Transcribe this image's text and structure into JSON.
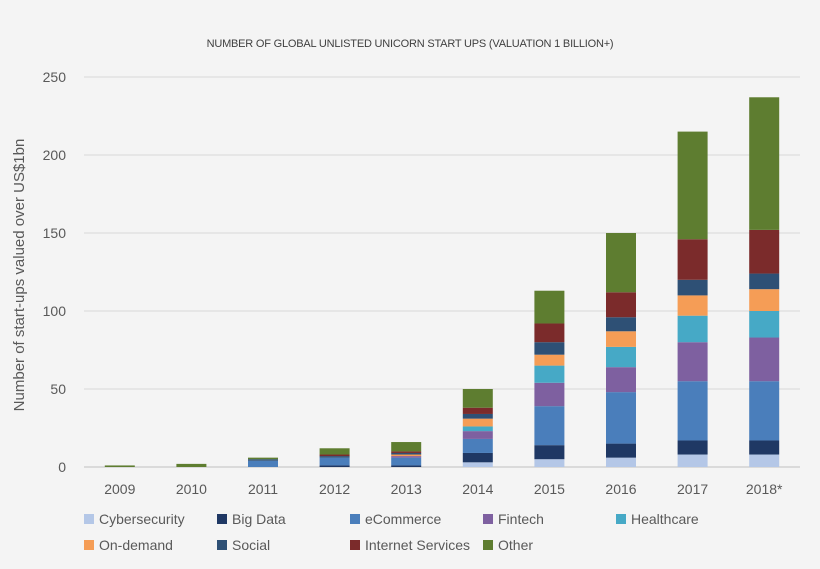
{
  "chart_data": {
    "type": "bar",
    "stacked": true,
    "title": "NUMBER OF GLOBAL UNLISTED UNICORN START UPS (VALUATION 1 BILLION+)",
    "ylabel": "Number of start-ups valued over US$1bn",
    "xlabel": "",
    "ylim": [
      0,
      250
    ],
    "yticks": [
      0,
      50,
      100,
      150,
      200,
      250
    ],
    "grid": true,
    "legend_position": "bottom",
    "categories": [
      "2009",
      "2010",
      "2011",
      "2012",
      "2013",
      "2014",
      "2015",
      "2016",
      "2017",
      "2018*"
    ],
    "series": [
      {
        "name": "Cybersecurity",
        "color": "#b4c7e7",
        "values": [
          0,
          0,
          0,
          0,
          0,
          3,
          5,
          6,
          8,
          8
        ]
      },
      {
        "name": "Big Data",
        "color": "#1f3864",
        "values": [
          0,
          0,
          0,
          1,
          1,
          6,
          9,
          9,
          9,
          9
        ]
      },
      {
        "name": "eCommerce",
        "color": "#4a7ebb",
        "values": [
          0,
          0,
          4,
          5,
          5,
          9,
          25,
          33,
          38,
          38
        ]
      },
      {
        "name": "Fintech",
        "color": "#7e60a0",
        "values": [
          0,
          0,
          0,
          0,
          1,
          5,
          15,
          16,
          25,
          28
        ]
      },
      {
        "name": "Healthcare",
        "color": "#46a9c6",
        "values": [
          0,
          0,
          0,
          0,
          0,
          3,
          11,
          13,
          17,
          17
        ]
      },
      {
        "name": "On-demand",
        "color": "#f59d56",
        "values": [
          0,
          0,
          0,
          0,
          1,
          5,
          7,
          10,
          13,
          14
        ]
      },
      {
        "name": "Social",
        "color": "#2e5075",
        "values": [
          0,
          0,
          1,
          1,
          1,
          3,
          8,
          9,
          10,
          10
        ]
      },
      {
        "name": "Internet Services",
        "color": "#7b2b2b",
        "values": [
          0,
          0,
          0,
          1,
          1,
          4,
          12,
          16,
          26,
          28
        ]
      },
      {
        "name": "Other",
        "color": "#5e7d30",
        "values": [
          1,
          2,
          1,
          4,
          6,
          12,
          21,
          38,
          69,
          85
        ]
      }
    ]
  }
}
